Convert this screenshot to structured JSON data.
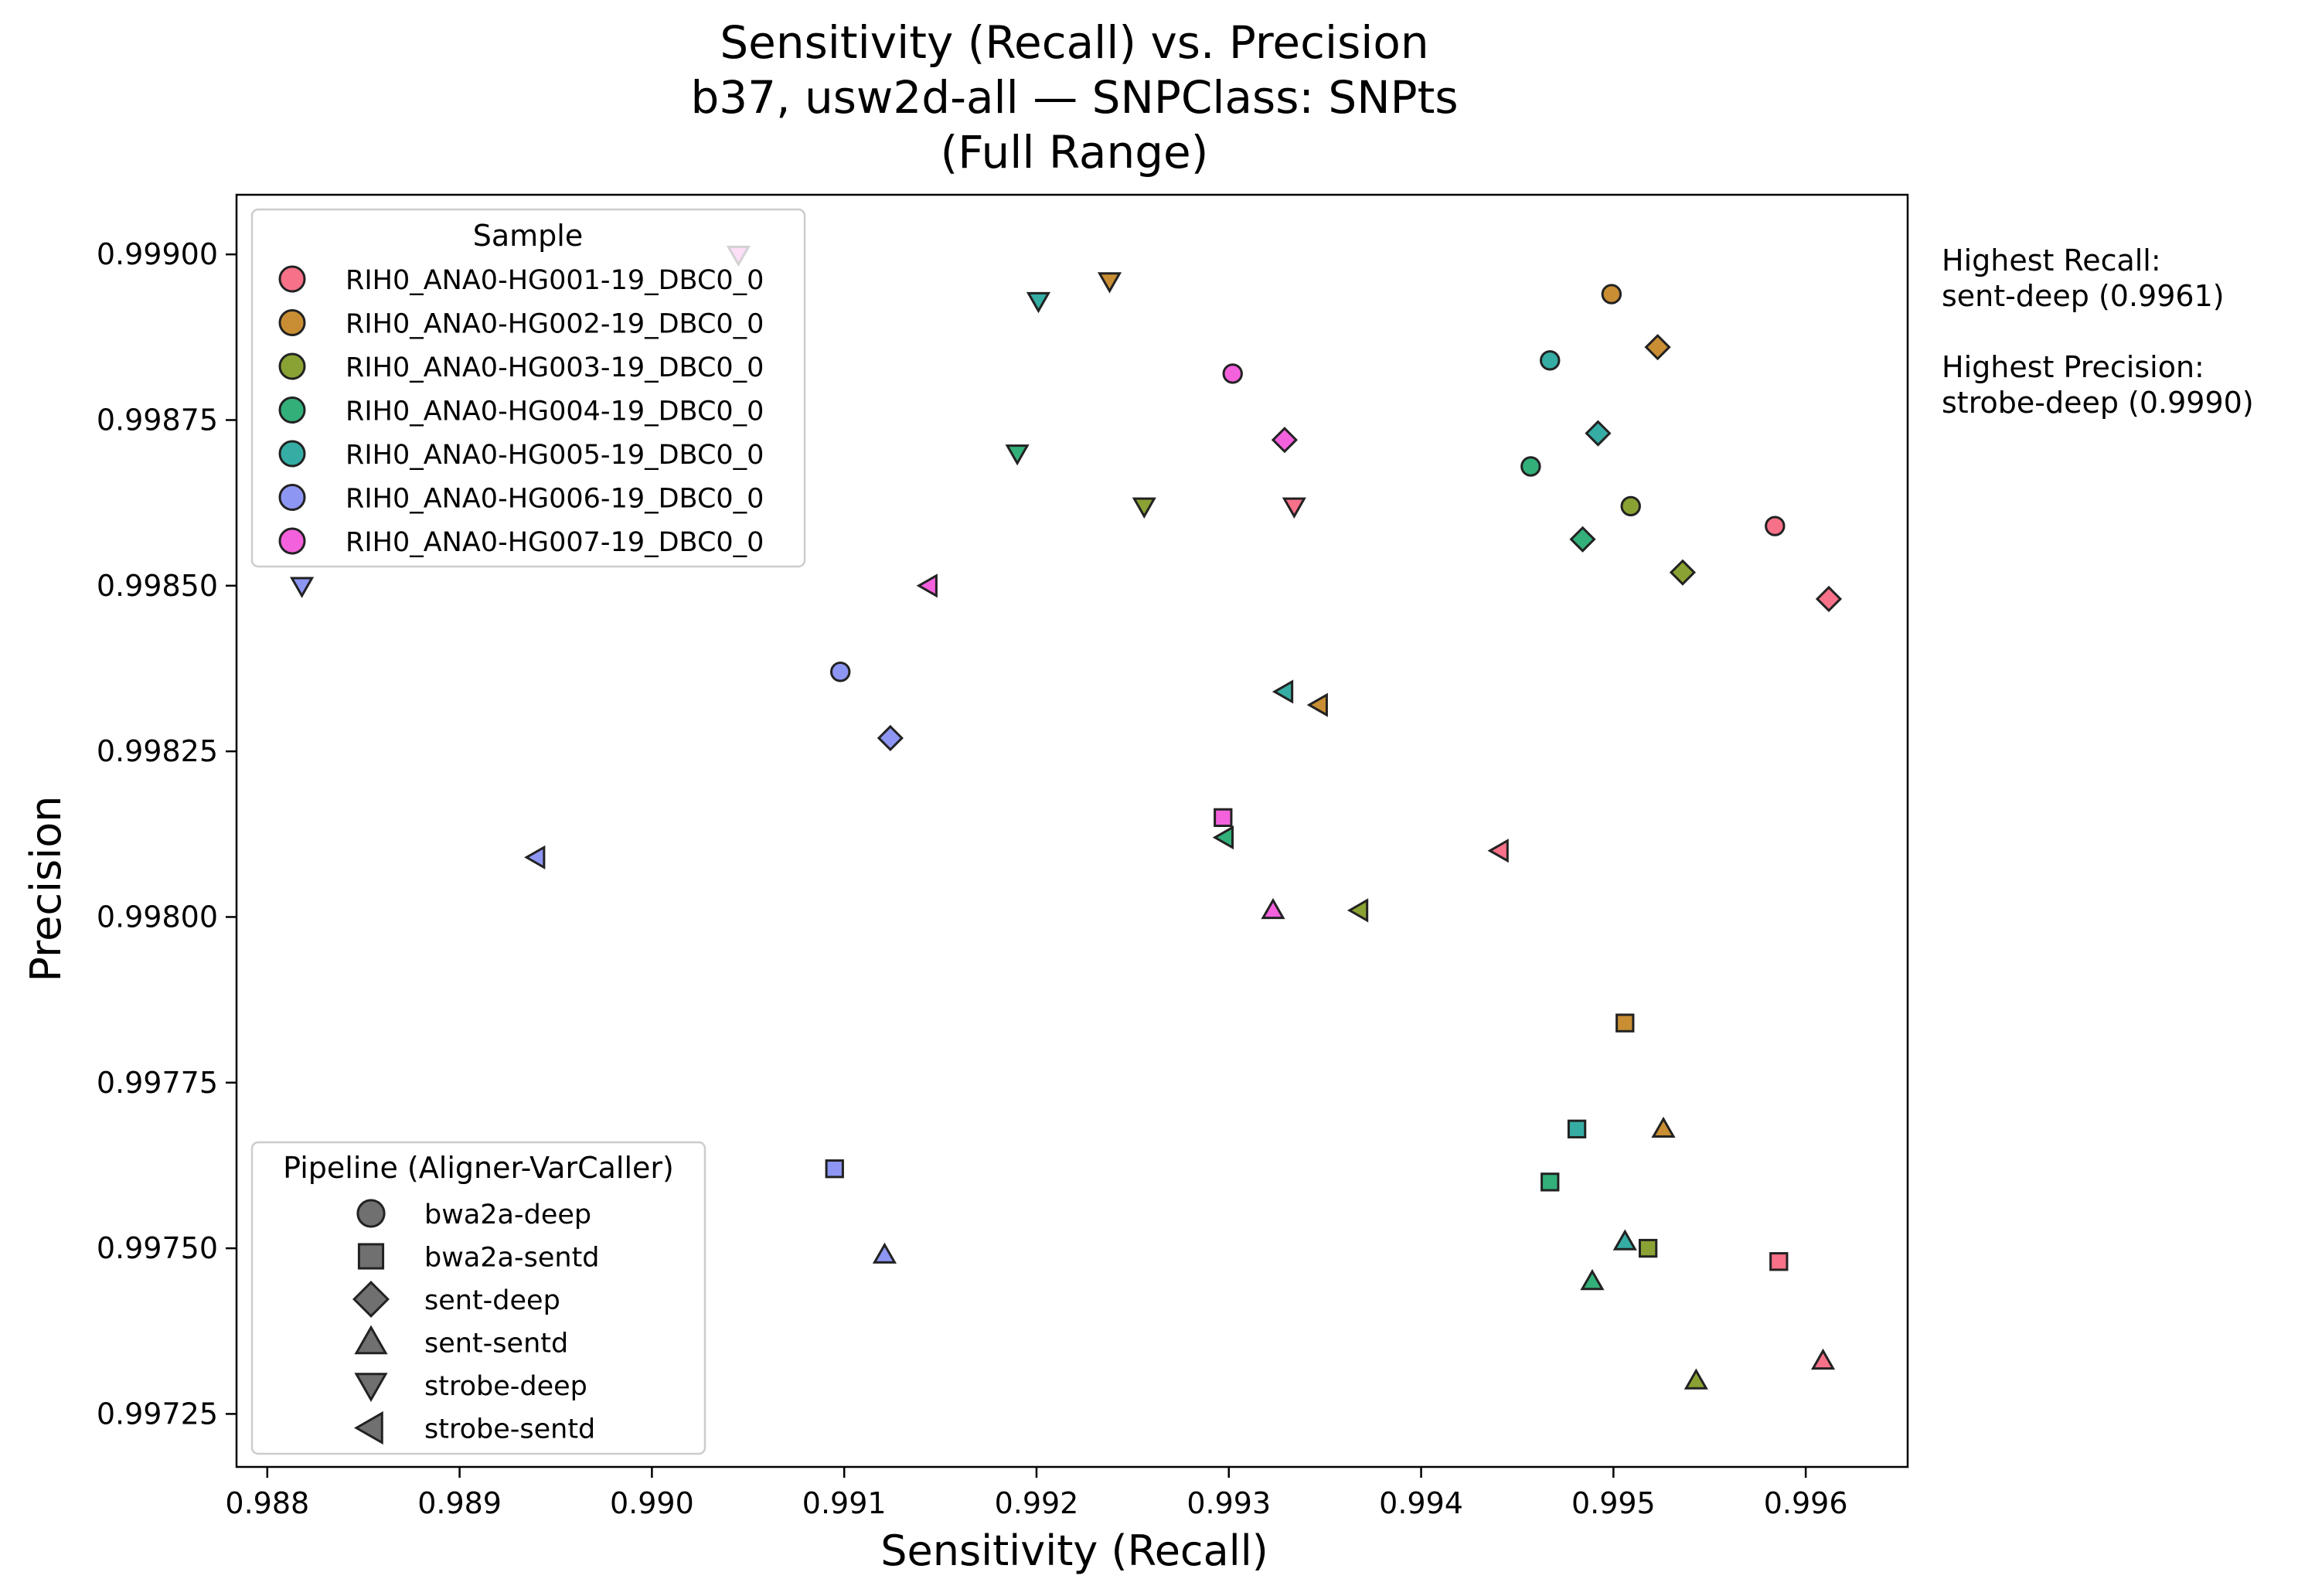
{
  "chart_data": {
    "type": "scatter",
    "title": "Sensitivity (Recall) vs. Precision",
    "subtitle": "b37, usw2d-all — SNPClass: SNPts",
    "subtitle2": "(Full Range)",
    "xlabel": "Sensitivity (Recall)",
    "ylabel": "Precision",
    "xlim": [
      0.98784,
      0.99653
    ],
    "ylim": [
      0.99717,
      0.99909
    ],
    "xticks": [
      "0.988",
      "0.989",
      "0.990",
      "0.991",
      "0.992",
      "0.993",
      "0.994",
      "0.995",
      "0.996"
    ],
    "yticks": [
      "0.99725",
      "0.99750",
      "0.99775",
      "0.99800",
      "0.99825",
      "0.99850",
      "0.99875",
      "0.99900"
    ],
    "grid": false,
    "sample_legend": {
      "title": "Sample",
      "placement": "upper-left",
      "entries": [
        {
          "name": "RIH0_ANA0-HG001-19_DBC0_0",
          "color": "#f77189"
        },
        {
          "name": "RIH0_ANA0-HG002-19_DBC0_0",
          "color": "#c98e33"
        },
        {
          "name": "RIH0_ANA0-HG003-19_DBC0_0",
          "color": "#8aa233"
        },
        {
          "name": "RIH0_ANA0-HG004-19_DBC0_0",
          "color": "#33b07a"
        },
        {
          "name": "RIH0_ANA0-HG005-19_DBC0_0",
          "color": "#36ada4"
        },
        {
          "name": "RIH0_ANA0-HG006-19_DBC0_0",
          "color": "#8e96f4"
        },
        {
          "name": "RIH0_ANA0-HG007-19_DBC0_0",
          "color": "#f461dd"
        }
      ]
    },
    "pipeline_legend": {
      "title": "Pipeline (Aligner-VarCaller)",
      "placement": "lower-left",
      "entries": [
        {
          "name": "bwa2a-deep",
          "marker": "circle"
        },
        {
          "name": "bwa2a-sentd",
          "marker": "square"
        },
        {
          "name": "sent-deep",
          "marker": "diamond"
        },
        {
          "name": "sent-sentd",
          "marker": "triangle-up"
        },
        {
          "name": "strobe-deep",
          "marker": "triangle-down"
        },
        {
          "name": "strobe-sentd",
          "marker": "triangle-left"
        }
      ]
    },
    "annotations": [
      "Highest Recall:",
      "sent-deep (0.9961)",
      "Highest Precision:",
      "strobe-deep (0.9990)"
    ],
    "points": [
      {
        "sample": 0,
        "pipeline": "bwa2a-deep",
        "x": 0.99584,
        "y": 0.99859
      },
      {
        "sample": 0,
        "pipeline": "bwa2a-sentd",
        "x": 0.99586,
        "y": 0.99748
      },
      {
        "sample": 0,
        "pipeline": "sent-deep",
        "x": 0.99612,
        "y": 0.99848
      },
      {
        "sample": 0,
        "pipeline": "sent-sentd",
        "x": 0.99609,
        "y": 0.99733
      },
      {
        "sample": 0,
        "pipeline": "strobe-deep",
        "x": 0.99334,
        "y": 0.99862
      },
      {
        "sample": 0,
        "pipeline": "strobe-sentd",
        "x": 0.99441,
        "y": 0.9981
      },
      {
        "sample": 1,
        "pipeline": "bwa2a-deep",
        "x": 0.99499,
        "y": 0.99894
      },
      {
        "sample": 1,
        "pipeline": "bwa2a-sentd",
        "x": 0.99506,
        "y": 0.99784
      },
      {
        "sample": 1,
        "pipeline": "sent-deep",
        "x": 0.99523,
        "y": 0.99886
      },
      {
        "sample": 1,
        "pipeline": "sent-sentd",
        "x": 0.99526,
        "y": 0.99768
      },
      {
        "sample": 1,
        "pipeline": "strobe-deep",
        "x": 0.99238,
        "y": 0.99896
      },
      {
        "sample": 1,
        "pipeline": "strobe-sentd",
        "x": 0.99347,
        "y": 0.99832
      },
      {
        "sample": 2,
        "pipeline": "bwa2a-deep",
        "x": 0.99509,
        "y": 0.99862
      },
      {
        "sample": 2,
        "pipeline": "bwa2a-sentd",
        "x": 0.99518,
        "y": 0.9975
      },
      {
        "sample": 2,
        "pipeline": "sent-deep",
        "x": 0.99536,
        "y": 0.99852
      },
      {
        "sample": 2,
        "pipeline": "sent-sentd",
        "x": 0.99543,
        "y": 0.9973
      },
      {
        "sample": 2,
        "pipeline": "strobe-deep",
        "x": 0.99256,
        "y": 0.99862
      },
      {
        "sample": 2,
        "pipeline": "strobe-sentd",
        "x": 0.99368,
        "y": 0.99801
      },
      {
        "sample": 3,
        "pipeline": "bwa2a-deep",
        "x": 0.99457,
        "y": 0.99868
      },
      {
        "sample": 3,
        "pipeline": "bwa2a-sentd",
        "x": 0.99467,
        "y": 0.9976
      },
      {
        "sample": 3,
        "pipeline": "sent-deep",
        "x": 0.99484,
        "y": 0.99857
      },
      {
        "sample": 3,
        "pipeline": "sent-sentd",
        "x": 0.99489,
        "y": 0.99745
      },
      {
        "sample": 3,
        "pipeline": "strobe-deep",
        "x": 0.9919,
        "y": 0.9987
      },
      {
        "sample": 3,
        "pipeline": "strobe-sentd",
        "x": 0.99298,
        "y": 0.99812
      },
      {
        "sample": 4,
        "pipeline": "bwa2a-deep",
        "x": 0.99467,
        "y": 0.99884
      },
      {
        "sample": 4,
        "pipeline": "bwa2a-sentd",
        "x": 0.99481,
        "y": 0.99768
      },
      {
        "sample": 4,
        "pipeline": "sent-deep",
        "x": 0.99492,
        "y": 0.99873
      },
      {
        "sample": 4,
        "pipeline": "sent-sentd",
        "x": 0.99506,
        "y": 0.99751
      },
      {
        "sample": 4,
        "pipeline": "strobe-deep",
        "x": 0.99201,
        "y": 0.99893
      },
      {
        "sample": 4,
        "pipeline": "strobe-sentd",
        "x": 0.99329,
        "y": 0.99834
      },
      {
        "sample": 5,
        "pipeline": "bwa2a-deep",
        "x": 0.99098,
        "y": 0.99837
      },
      {
        "sample": 5,
        "pipeline": "bwa2a-sentd",
        "x": 0.99095,
        "y": 0.99762
      },
      {
        "sample": 5,
        "pipeline": "sent-deep",
        "x": 0.99124,
        "y": 0.99827
      },
      {
        "sample": 5,
        "pipeline": "sent-sentd",
        "x": 0.99121,
        "y": 0.99749
      },
      {
        "sample": 5,
        "pipeline": "strobe-deep",
        "x": 0.98818,
        "y": 0.9985
      },
      {
        "sample": 5,
        "pipeline": "strobe-sentd",
        "x": 0.9894,
        "y": 0.99809
      },
      {
        "sample": 6,
        "pipeline": "bwa2a-deep",
        "x": 0.99302,
        "y": 0.99882
      },
      {
        "sample": 6,
        "pipeline": "bwa2a-sentd",
        "x": 0.99297,
        "y": 0.99815
      },
      {
        "sample": 6,
        "pipeline": "sent-deep",
        "x": 0.99329,
        "y": 0.99872
      },
      {
        "sample": 6,
        "pipeline": "sent-sentd",
        "x": 0.99323,
        "y": 0.99801
      },
      {
        "sample": 6,
        "pipeline": "strobe-deep",
        "x": 0.99045,
        "y": 0.999
      },
      {
        "sample": 6,
        "pipeline": "strobe-sentd",
        "x": 0.99144,
        "y": 0.9985
      }
    ]
  }
}
